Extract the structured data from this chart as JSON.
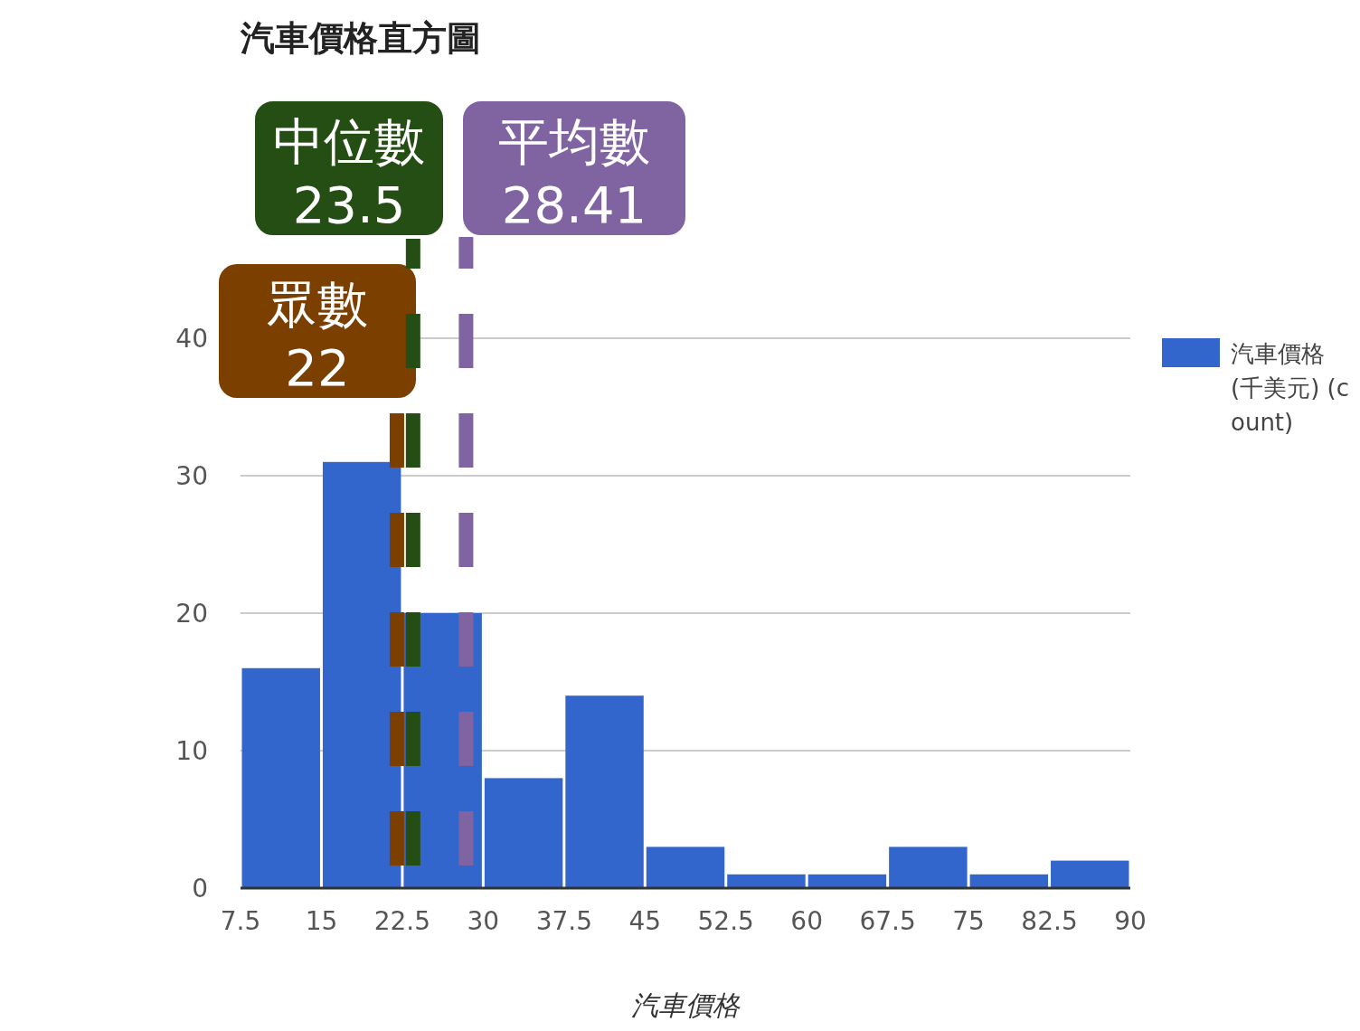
{
  "chart_data": {
    "type": "histogram",
    "title": "汽車價格直方圖",
    "xlabel": "汽車價格",
    "bins": [
      7.5,
      15,
      22.5,
      30,
      37.5,
      45,
      52.5,
      60,
      67.5,
      75,
      82.5,
      90
    ],
    "series": [
      {
        "name": "汽車價格(千美元) (count)",
        "color": "#3366cc",
        "values": [
          16,
          31,
          20,
          8,
          14,
          3,
          1,
          1,
          3,
          1,
          2
        ]
      }
    ],
    "xlim": [
      7.5,
      90
    ],
    "xticks": [
      7.5,
      15,
      22.5,
      30,
      37.5,
      45,
      52.5,
      60,
      67.5,
      75,
      82.5,
      90
    ],
    "ylim": [
      0,
      40
    ],
    "yticks": [
      0,
      10,
      20,
      30,
      40
    ],
    "grid": "y",
    "legend": "right",
    "ref_lines": [
      {
        "axis": "x",
        "value": 22,
        "label": "眾數\n22",
        "color": "#7b3f00",
        "line_style": "dashed"
      },
      {
        "axis": "x",
        "value": 23.5,
        "label": "中位數\n23.5",
        "color": "#254e14",
        "line_style": "dashed"
      },
      {
        "axis": "x",
        "value": 28.41,
        "label": "平均數\n28.41",
        "color": "#8064a2",
        "line_style": "dashed"
      }
    ]
  }
}
